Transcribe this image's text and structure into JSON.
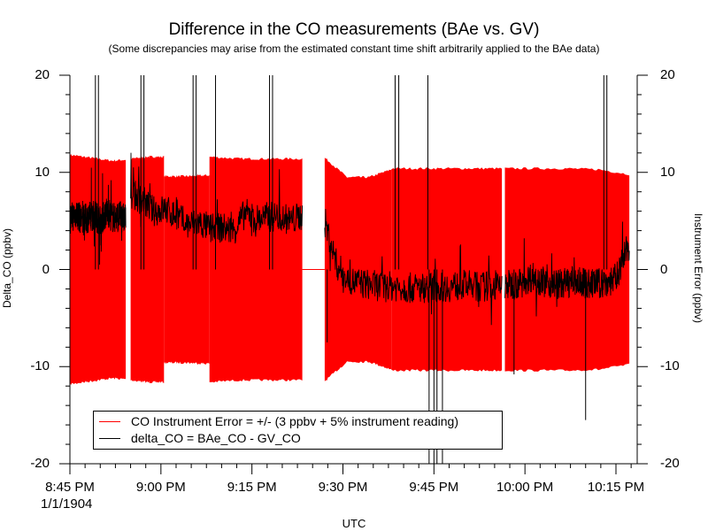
{
  "chart_data": {
    "type": "line",
    "title": "Difference in the CO measurements (BAe vs. GV)",
    "subtitle": "(Some discrepancies may arise from the estimated constant time shift arbitrarily applied to the BAe data)",
    "xlabel": "UTC",
    "ylabel_left": "Delta_CO (ppbv)",
    "ylabel_right": "Instrument Error (ppbv)",
    "date_label": "1/1/1904",
    "x_tick_labels": [
      "8:45 PM",
      "9:00 PM",
      "9:15 PM",
      "9:30 PM",
      "9:45 PM",
      "10:00 PM",
      "10:15 PM"
    ],
    "x_tick_minutes": [
      1245,
      1260,
      1275,
      1290,
      1305,
      1320,
      1335
    ],
    "xlim_minutes": [
      1245,
      1338.5
    ],
    "y_ticks": [
      20,
      10,
      0,
      -10,
      -20
    ],
    "y_tick_labels": [
      "20",
      "10",
      "0",
      "-10",
      "-20"
    ],
    "ylim": [
      -20,
      20
    ],
    "legend_position": "bottom-left",
    "colors": {
      "error": "#ff0000",
      "delta": "#000000"
    },
    "series": [
      {
        "name": "CO Instrument Error = +/- (3 ppbv + 5% instrument reading)",
        "style": "symmetric filled band about zero",
        "segments": [
          {
            "minutes": [
              1245,
              1254.2
            ],
            "magnitude": [
              11.8,
              11.6,
              11.4,
              11.2,
              11.3
            ]
          },
          {
            "minutes": [
              1255,
              1260.5
            ],
            "magnitude": [
              11.4,
              11.6,
              11.6
            ]
          },
          {
            "minutes": [
              1260.5,
              1268
            ],
            "magnitude": [
              9.6,
              9.6,
              9.7
            ]
          },
          {
            "minutes": [
              1268,
              1283.3
            ],
            "magnitude": [
              11.6,
              11.4,
              11.4,
              11.4
            ]
          },
          {
            "minutes": [
              1287,
              1298
            ],
            "magnitude": [
              11.5,
              9.5,
              9.5,
              10.3
            ]
          },
          {
            "minutes": [
              1298,
              1316.2
            ],
            "magnitude": [
              10.4,
              10.4,
              10.4,
              10.4
            ]
          },
          {
            "minutes": [
              1316.7,
              1337.2
            ],
            "magnitude": [
              10.4,
              10.4,
              10.4,
              10.3,
              9.8
            ]
          }
        ],
        "zero_gaps": [
          [
            1283.3,
            1287
          ]
        ]
      },
      {
        "name": "delta_CO =  BAe_CO - GV_CO",
        "segments": [
          {
            "minutes": [
              1245,
              1254.2
            ],
            "y": [
              5.2,
              5.8,
              5.0,
              5.4,
              5.6,
              5.0,
              6.0,
              5.3,
              5.5,
              5.2
            ]
          },
          {
            "minutes": [
              1255,
              1283.3
            ],
            "y": [
              7.8,
              7.2,
              6.0,
              6.2,
              5.5,
              4.6,
              4.8,
              4.2,
              4.3,
              4.0,
              5.8,
              5.2,
              5.4,
              5.5,
              5.0,
              5.6
            ]
          },
          {
            "minutes": [
              1287,
              1316.2
            ],
            "y": [
              5.0,
              0.5,
              -1.2,
              -1.4,
              -1.6,
              -1.8,
              -1.7,
              -1.9,
              -1.9,
              -1.8,
              -1.9,
              -1.7,
              -1.6,
              -1.8,
              -1.7,
              -1.8
            ]
          },
          {
            "minutes": [
              1316.7,
              1337.2
            ],
            "y": [
              -1.6,
              -1.5,
              -0.7,
              -1.4,
              -1.5,
              -1.2,
              -1.5,
              -1.4,
              -1.0,
              2.6
            ]
          }
        ],
        "spikes": [
          {
            "minute": 1249.2,
            "to": 20
          },
          {
            "minute": 1249.7,
            "to": 20
          },
          {
            "minute": 1256.7,
            "to": 20
          },
          {
            "minute": 1257.2,
            "to": 20
          },
          {
            "minute": 1265.3,
            "to": 20
          },
          {
            "minute": 1265.8,
            "to": 20
          },
          {
            "minute": 1269.0,
            "to": 20
          },
          {
            "minute": 1277.9,
            "to": 20
          },
          {
            "minute": 1278.4,
            "to": 20
          },
          {
            "minute": 1298.6,
            "to": 20
          },
          {
            "minute": 1299.2,
            "to": 20
          },
          {
            "minute": 1304.2,
            "to": -20
          },
          {
            "minute": 1305.5,
            "to": -20
          },
          {
            "minute": 1304.0,
            "to": 20
          },
          {
            "minute": 1305.0,
            "to": -20
          },
          {
            "minute": 1306.4,
            "to": -20
          },
          {
            "minute": 1333.0,
            "to": 20
          },
          {
            "minute": 1333.5,
            "to": 20
          },
          {
            "minute": 1330.0,
            "to": -15.5
          },
          {
            "minute": 1318.2,
            "to": -10.8
          },
          {
            "minute": 1287.4,
            "to": -7.5
          }
        ]
      }
    ]
  }
}
